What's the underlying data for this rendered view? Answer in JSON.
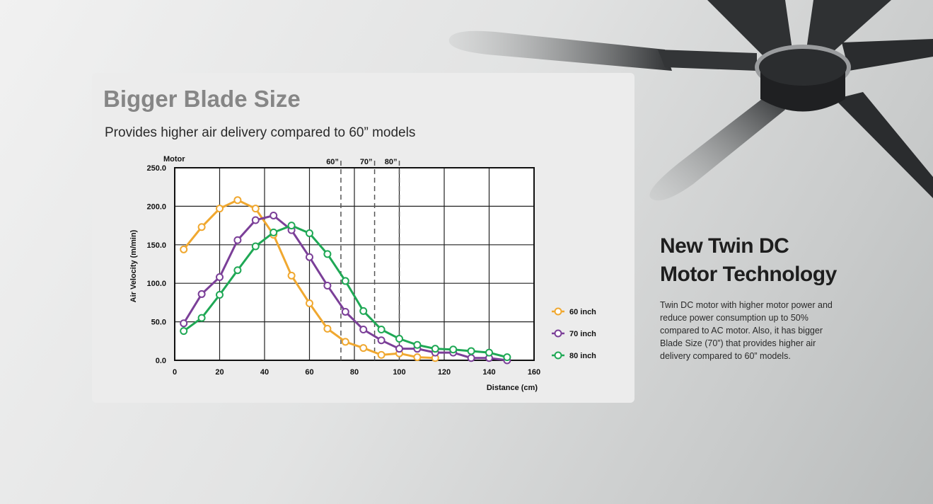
{
  "card": {
    "title": "Bigger Blade Size",
    "subtitle": "Provides higher air delivery compared to 60” models"
  },
  "chart_data": {
    "type": "line",
    "x_label": "Distance (cm)",
    "y_label": "Air Velocity (m/min)",
    "top_label": "Motor",
    "xlim": [
      0,
      160
    ],
    "xticks": [
      0,
      20,
      40,
      60,
      80,
      100,
      120,
      140,
      160
    ],
    "ylim": [
      0,
      250
    ],
    "yticks": [
      {
        "value": 0,
        "label": "0.0"
      },
      {
        "value": 50,
        "label": "50.0"
      },
      {
        "value": 100,
        "label": "100.0"
      },
      {
        "value": 150,
        "label": "150.0"
      },
      {
        "value": 200,
        "label": "200.0"
      },
      {
        "value": 250,
        "label": "250.0"
      }
    ],
    "grid": true,
    "legend": "right",
    "markers": [
      {
        "label": "60”",
        "x": 74
      },
      {
        "label": "70”",
        "x": 89
      },
      {
        "label": "80”",
        "x": 100
      }
    ],
    "series": [
      {
        "name": "60 inch",
        "color": "#f0a830",
        "x": [
          4,
          12,
          20,
          28,
          36,
          44,
          52,
          60,
          68,
          76,
          84,
          92,
          100,
          108,
          116
        ],
        "values": [
          144,
          173,
          197,
          208,
          197,
          163,
          110,
          74,
          41,
          24,
          16,
          7,
          9,
          4,
          3
        ]
      },
      {
        "name": "70 inch",
        "color": "#7b3f98",
        "x": [
          4,
          12,
          20,
          28,
          36,
          44,
          52,
          60,
          68,
          76,
          84,
          92,
          100,
          108,
          116,
          124,
          132,
          140,
          148
        ],
        "values": [
          48,
          86,
          108,
          156,
          182,
          188,
          169,
          134,
          97,
          63,
          40,
          26,
          15,
          15,
          10,
          10,
          3,
          3,
          0
        ]
      },
      {
        "name": "80 inch",
        "color": "#1fa855",
        "x": [
          4,
          12,
          20,
          28,
          36,
          44,
          52,
          60,
          68,
          76,
          84,
          92,
          100,
          108,
          116,
          124,
          132,
          140,
          148
        ],
        "values": [
          38,
          55,
          85,
          117,
          148,
          166,
          175,
          165,
          138,
          103,
          64,
          40,
          28,
          20,
          15,
          14,
          12,
          10,
          4
        ]
      }
    ]
  },
  "feature": {
    "title": "New Twin DC Motor Technology",
    "body": "Twin DC motor with higher motor power and reduce power consumption up to 50% compared to AC motor. Also, it has bigger Blade Size (70”) that provides higher air delivery compared to 60” models."
  }
}
